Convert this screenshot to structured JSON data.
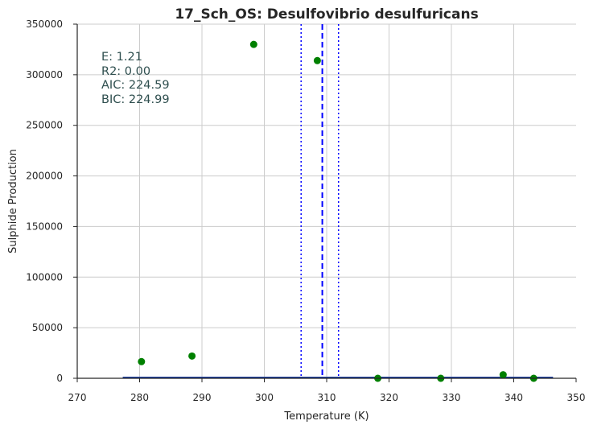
{
  "chart_data": {
    "type": "scatter",
    "title": "17_Sch_OS: Desulfovibrio desulfuricans",
    "xlabel": "Temperature (K)",
    "ylabel": "Sulphide Production",
    "xlim": [
      270,
      350
    ],
    "ylim": [
      0,
      350000
    ],
    "x_ticks": [
      "270",
      "280",
      "290",
      "300",
      "310",
      "320",
      "330",
      "340",
      "350"
    ],
    "y_ticks": [
      "0",
      "50000",
      "100000",
      "150000",
      "200000",
      "250000",
      "300000",
      "350000"
    ],
    "grid": true,
    "points": [
      {
        "x": 280.3,
        "y": 16500
      },
      {
        "x": 288.4,
        "y": 22000
      },
      {
        "x": 298.3,
        "y": 330000
      },
      {
        "x": 308.5,
        "y": 314000
      },
      {
        "x": 318.2,
        "y": 0
      },
      {
        "x": 328.3,
        "y": 0
      },
      {
        "x": 338.3,
        "y": 3500
      },
      {
        "x": 343.2,
        "y": 0
      }
    ],
    "fit_line": {
      "x": [
        277.3,
        346.3
      ],
      "y": [
        800,
        800
      ]
    },
    "tpk": 309.3,
    "tpk_ci": [
      305.9,
      311.9
    ],
    "stats": [
      "E:  1.21",
      "R2:  0.00",
      "AIC: 224.59",
      "BIC: 224.99"
    ],
    "colors": {
      "points": "#008000",
      "fit": "#0000ff",
      "fit_line": "#2040a0",
      "grid": "#cccccc",
      "stats_text": "#2f4f4f"
    }
  }
}
